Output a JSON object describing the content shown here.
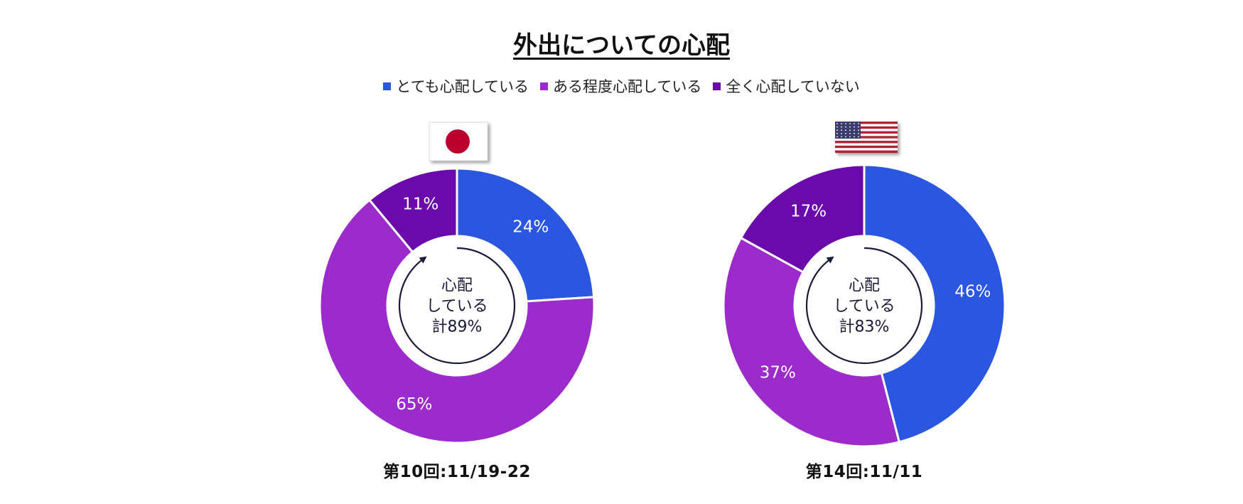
{
  "title": "外出についての心配",
  "legend": [
    {
      "label": "とても心配している",
      "color": "#2b57e0"
    },
    {
      "label": "ある程度心配している",
      "color": "#9b2bcb"
    },
    {
      "label": "全く心配していない",
      "color": "#6a0aab"
    }
  ],
  "chart_data": [
    {
      "type": "pie",
      "flag": "japan-flag-icon",
      "caption": "第10回:11/19-22",
      "center_lines": [
        "心配",
        "している",
        "計89%"
      ],
      "categories": [
        "とても心配している",
        "ある程度心配している",
        "全く心配していない"
      ],
      "values": [
        24,
        65,
        11
      ],
      "labels": [
        "24%",
        "65%",
        "11%"
      ]
    },
    {
      "type": "pie",
      "flag": "usa-flag-icon",
      "caption": "第14回:11/11",
      "center_lines": [
        "心配",
        "している",
        "計83%"
      ],
      "categories": [
        "とても心配している",
        "ある程度心配している",
        "全く心配していない"
      ],
      "values": [
        46,
        37,
        17
      ],
      "labels": [
        "46%",
        "37%",
        "17%"
      ]
    }
  ]
}
